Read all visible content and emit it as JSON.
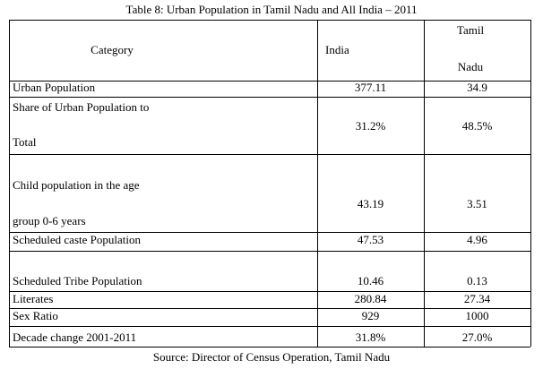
{
  "title": "Table 8: Urban Population in Tamil Nadu and All India – 2011",
  "table": {
    "header": {
      "category": "Category",
      "india": "India",
      "tamil_nadu": [
        "Tamil",
        "Nadu"
      ]
    },
    "rows": [
      {
        "label": [
          "Urban Population"
        ],
        "india": "377.11",
        "tamil_nadu": "34.9"
      },
      {
        "label": [
          "Share of Urban Population to",
          "Total"
        ],
        "india": "31.2%",
        "tamil_nadu": "48.5%"
      },
      {
        "label": [
          "Child population in the age",
          "group 0-6 years"
        ],
        "india": "43.19",
        "tamil_nadu": "3.51"
      },
      {
        "label": [
          "Scheduled caste Population"
        ],
        "india": "47.53",
        "tamil_nadu": "4.96"
      },
      {
        "label": [
          "Scheduled Tribe Population"
        ],
        "india": "10.46",
        "tamil_nadu": "0.13"
      },
      {
        "label": [
          "Literates"
        ],
        "india": "280.84",
        "tamil_nadu": "27.34"
      },
      {
        "label": [
          "Sex Ratio"
        ],
        "india": "929",
        "tamil_nadu": "1000"
      },
      {
        "label": [
          "Decade change 2001-2011"
        ],
        "india": "31.8%",
        "tamil_nadu": "27.0%"
      }
    ]
  },
  "source": "Source: Director of Census Operation, Tamil Nadu"
}
